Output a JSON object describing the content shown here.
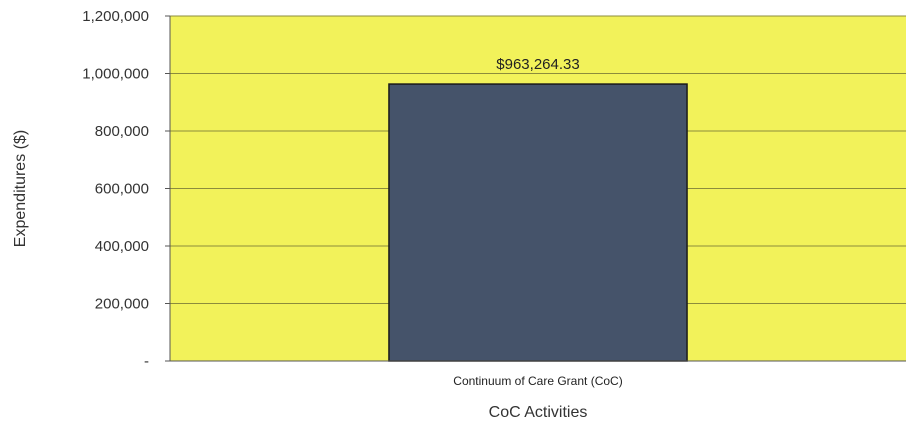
{
  "chart_data": {
    "type": "bar",
    "categories": [
      "Continuum of Care Grant (CoC)"
    ],
    "values": [
      963264.33
    ],
    "data_labels": [
      "$963,264.33"
    ],
    "xlabel": "CoC Activities",
    "ylabel": "Expenditures ($)",
    "ylim": [
      0,
      1200000
    ],
    "yticks": [
      0,
      200000,
      400000,
      600000,
      800000,
      1000000,
      1200000
    ],
    "ytick_labels": [
      "-",
      "200,000",
      "400,000",
      "600,000",
      "800,000",
      "1,000,000",
      "1,200,000"
    ],
    "grid": true,
    "legend": "none",
    "colors": {
      "plot_background": "#f2f25a",
      "bar": "#45536a",
      "bar_border": "#1a1a1a",
      "gridline": "#8c8c3c"
    }
  }
}
